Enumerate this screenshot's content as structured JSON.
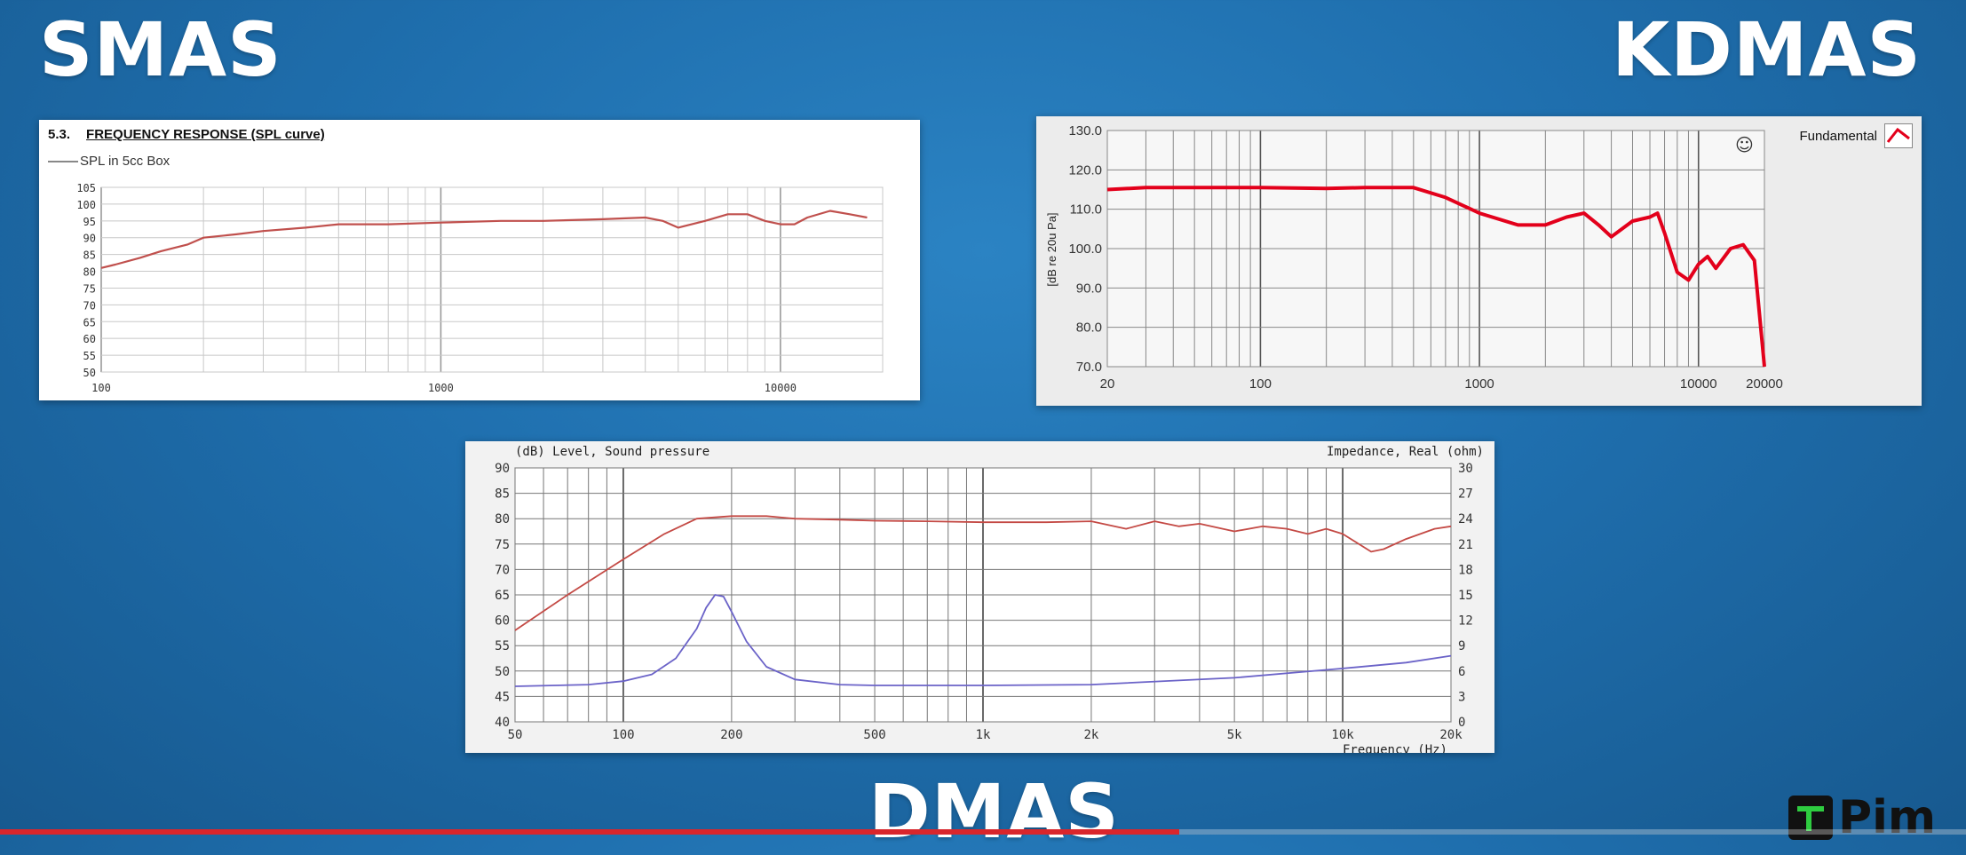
{
  "labels": {
    "smas": "SMAS",
    "kdmas": "KDMAS",
    "dmas": "DMAS"
  },
  "branding": {
    "logo_text": "Pim"
  },
  "video_progress": 0.6,
  "chart_data": [
    {
      "id": "smas",
      "type": "line",
      "title_number": "5.3.",
      "title": "FREQUENCY RESPONSE (SPL curve)",
      "legend": [
        "SPL in 5cc Box"
      ],
      "x_scale": "log",
      "xlim": [
        100,
        20000
      ],
      "ylim": [
        50,
        105
      ],
      "x_ticks": [
        100,
        1000,
        10000
      ],
      "x_tick_labels": [
        "100",
        "1000",
        "10000"
      ],
      "y_ticks": [
        50,
        55,
        60,
        65,
        70,
        75,
        80,
        85,
        90,
        95,
        100,
        105
      ],
      "series": [
        {
          "name": "SPL in 5cc Box",
          "color": "#c0504d",
          "x": [
            100,
            110,
            130,
            150,
            180,
            200,
            250,
            300,
            400,
            500,
            700,
            1000,
            1500,
            2000,
            3000,
            4000,
            4500,
            5000,
            6000,
            7000,
            8000,
            9000,
            10000,
            11000,
            12000,
            14000,
            16000,
            18000
          ],
          "y": [
            81,
            82,
            84,
            86,
            88,
            90,
            91,
            92,
            93,
            94,
            94,
            94.5,
            95,
            95,
            95.5,
            96,
            95,
            93,
            95,
            97,
            97,
            95,
            94,
            94,
            96,
            98,
            97,
            96
          ]
        }
      ]
    },
    {
      "id": "kdmas",
      "type": "line",
      "ylabel": "[dB re 20u Pa]",
      "legend": [
        "Fundamental"
      ],
      "x_scale": "log",
      "xlim": [
        20,
        20000
      ],
      "ylim": [
        70,
        130
      ],
      "x_tick_labels": [
        "20",
        "100",
        "1000",
        "10000",
        "20000"
      ],
      "x_ticks": [
        20,
        100,
        1000,
        10000,
        20000
      ],
      "y_ticks": [
        70,
        80,
        90,
        100,
        110,
        120,
        130
      ],
      "y_tick_labels": [
        "70.0",
        "80.0",
        "90.0",
        "100.0",
        "110.0",
        "120.0",
        "130.0"
      ],
      "series": [
        {
          "name": "Fundamental",
          "color": "#e3001b",
          "x": [
            20,
            30,
            50,
            100,
            200,
            300,
            500,
            700,
            1000,
            1500,
            2000,
            2500,
            3000,
            3500,
            4000,
            5000,
            6000,
            6500,
            7000,
            8000,
            9000,
            10000,
            11000,
            12000,
            14000,
            16000,
            18000,
            20000
          ],
          "y": [
            115,
            115.5,
            115.5,
            115.5,
            115.3,
            115.5,
            115.5,
            113,
            109,
            106,
            106,
            108,
            109,
            106,
            103,
            107,
            108,
            109,
            104,
            94,
            92,
            96,
            98,
            95,
            100,
            101,
            97,
            70
          ]
        }
      ]
    },
    {
      "id": "dmas",
      "type": "line",
      "left_axis_label": "(dB)  Level, Sound pressure",
      "right_axis_label": "Impedance, Real  (ohm)",
      "xlabel": "Frequency  (Hz)",
      "x_scale": "log",
      "xlim": [
        50,
        20000
      ],
      "ylim": [
        40,
        90
      ],
      "y2lim": [
        0,
        30
      ],
      "x_tick_labels": [
        "50",
        "100",
        "200",
        "500",
        "1k",
        "2k",
        "5k",
        "10k",
        "20k"
      ],
      "x_ticks": [
        50,
        100,
        200,
        500,
        1000,
        2000,
        5000,
        10000,
        20000
      ],
      "y_ticks": [
        40,
        45,
        50,
        55,
        60,
        65,
        70,
        75,
        80,
        85,
        90
      ],
      "y2_ticks": [
        0,
        3,
        6,
        9,
        12,
        15,
        18,
        21,
        24,
        27,
        30
      ],
      "series": [
        {
          "name": "Level, Sound pressure",
          "axis": "left",
          "color": "#c44a45",
          "x": [
            50,
            70,
            100,
            130,
            160,
            200,
            250,
            300,
            400,
            500,
            700,
            1000,
            1500,
            2000,
            2500,
            3000,
            3500,
            4000,
            5000,
            6000,
            7000,
            8000,
            9000,
            10000,
            12000,
            13000,
            15000,
            18000,
            20000
          ],
          "y": [
            58,
            65,
            72,
            77,
            80,
            80.5,
            80.5,
            80,
            79.8,
            79.6,
            79.5,
            79.3,
            79.3,
            79.5,
            78,
            79.5,
            78.5,
            79,
            77.5,
            78.5,
            78,
            77,
            78,
            77,
            73.5,
            74,
            76,
            78,
            78.5
          ]
        },
        {
          "name": "Impedance, Real",
          "axis": "right",
          "color": "#6b63c8",
          "x": [
            50,
            80,
            100,
            120,
            140,
            160,
            170,
            180,
            190,
            200,
            220,
            250,
            300,
            400,
            500,
            1000,
            2000,
            5000,
            10000,
            15000,
            20000
          ],
          "y": [
            4.2,
            4.4,
            4.8,
            5.6,
            7.5,
            11,
            13.5,
            15,
            14.8,
            13,
            9.5,
            6.5,
            5,
            4.4,
            4.3,
            4.3,
            4.4,
            5.2,
            6.3,
            7,
            7.8
          ]
        }
      ]
    }
  ]
}
